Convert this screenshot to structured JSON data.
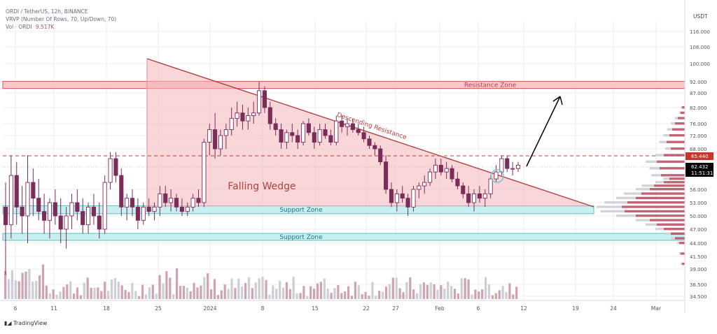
{
  "header": {
    "line1": "ORDI / TetherUS, 12h, BINANCE",
    "line2": "VRVP (Number Of Rows, 70, Up/Down, 70)",
    "line3_label": "Vol · ORDI",
    "line3_value": "9.517K"
  },
  "footer": {
    "brand": "TradingView"
  },
  "colors": {
    "up": "#7b2d5a",
    "down": "#7b2d5a",
    "wedge_fill": "#f4b4b8",
    "wedge_line": "#b0413e",
    "resistance_fill": "#f8c8cc",
    "resistance_line": "#d9534f",
    "support_fill": "#c8f0f0",
    "support_line": "#5bc0c0",
    "vol_up": "#c9c9d1",
    "vol_down": "#c89aa6",
    "vp": "#b8495e"
  },
  "chart_data": {
    "type": "candlestick",
    "symbol": "ORDI / TetherUS",
    "timeframe": "12h",
    "exchange": "BINANCE",
    "y_axis_unit": "USDT",
    "y_ticks": [
      "116.000",
      "108.000",
      "100.000",
      "92.000",
      "87.000",
      "82.000",
      "76.000",
      "72.000",
      "68.000",
      "62.432",
      "56.000",
      "53.000",
      "50.000",
      "47.000",
      "44.000",
      "41.500",
      "39.000",
      "36.500",
      "34.500"
    ],
    "x_ticks": [
      "6",
      "11",
      "18",
      "25",
      "2024",
      "8",
      "15",
      "22",
      "27",
      "Feb",
      "6",
      "12",
      "19",
      "24",
      "Mar"
    ],
    "last_price": "62.432",
    "last_price_time": "11:51:31",
    "high_price_label": "65.440",
    "price_range": [
      33.5,
      122
    ],
    "candles_ohlc": [
      [
        52,
        58,
        38,
        48
      ],
      [
        48,
        66,
        45,
        60
      ],
      [
        60,
        64,
        48,
        52
      ],
      [
        52,
        57,
        46,
        50
      ],
      [
        50,
        66,
        44,
        58
      ],
      [
        58,
        62,
        50,
        54
      ],
      [
        54,
        59,
        49,
        51
      ],
      [
        51,
        55,
        46,
        49
      ],
      [
        49,
        54,
        45,
        53
      ],
      [
        53,
        56,
        48,
        50
      ],
      [
        50,
        54,
        44,
        47
      ],
      [
        47,
        52,
        43,
        50
      ],
      [
        50,
        55,
        47,
        53
      ],
      [
        53,
        56,
        49,
        51
      ],
      [
        51,
        54,
        46,
        48
      ],
      [
        48,
        53,
        46,
        52
      ],
      [
        52,
        55,
        48,
        50
      ],
      [
        50,
        53,
        45,
        47
      ],
      [
        47,
        60,
        46,
        58
      ],
      [
        58,
        67,
        56,
        65
      ],
      [
        65,
        67,
        58,
        60
      ],
      [
        60,
        62,
        50,
        52
      ],
      [
        52,
        55,
        49,
        54
      ],
      [
        54,
        56,
        50,
        52
      ],
      [
        52,
        54,
        47,
        49
      ],
      [
        49,
        53,
        48,
        52
      ],
      [
        52,
        54,
        50,
        51
      ],
      [
        51,
        53,
        49,
        52
      ],
      [
        52,
        57,
        50,
        55
      ],
      [
        55,
        57,
        52,
        53
      ],
      [
        53,
        56,
        51,
        54
      ],
      [
        54,
        55,
        51,
        52
      ],
      [
        52,
        54,
        50,
        51
      ],
      [
        51,
        53,
        50,
        52
      ],
      [
        52,
        55,
        51,
        54
      ],
      [
        54,
        56,
        52,
        53
      ],
      [
        53,
        71,
        52,
        70
      ],
      [
        70,
        76,
        66,
        74
      ],
      [
        74,
        80,
        65,
        68
      ],
      [
        68,
        74,
        66,
        72
      ],
      [
        72,
        76,
        68,
        74
      ],
      [
        74,
        82,
        72,
        78
      ],
      [
        78,
        84,
        75,
        80
      ],
      [
        80,
        83,
        74,
        77
      ],
      [
        77,
        82,
        74,
        79
      ],
      [
        79,
        84,
        76,
        80
      ],
      [
        80,
        92,
        79,
        88
      ],
      [
        88,
        90,
        80,
        82
      ],
      [
        82,
        84,
        74,
        76
      ],
      [
        76,
        78,
        72,
        74
      ],
      [
        74,
        76,
        68,
        70
      ],
      [
        70,
        74,
        68,
        73
      ],
      [
        73,
        76,
        70,
        72
      ],
      [
        72,
        74,
        68,
        70
      ],
      [
        70,
        77,
        69,
        76
      ],
      [
        76,
        78,
        72,
        73
      ],
      [
        73,
        75,
        68,
        70
      ],
      [
        70,
        76,
        69,
        74
      ],
      [
        74,
        76,
        71,
        72
      ],
      [
        72,
        74,
        69,
        70
      ],
      [
        70,
        79,
        69,
        77
      ],
      [
        77,
        79,
        73,
        75
      ],
      [
        75,
        78,
        72,
        76
      ],
      [
        76,
        78,
        73,
        74
      ],
      [
        74,
        76,
        72,
        73
      ],
      [
        73,
        75,
        70,
        71
      ],
      [
        71,
        72,
        68,
        69
      ],
      [
        69,
        70,
        66,
        68
      ],
      [
        68,
        69,
        63,
        64
      ],
      [
        64,
        66,
        55,
        56
      ],
      [
        56,
        58,
        52,
        53
      ],
      [
        53,
        56,
        51,
        55
      ],
      [
        55,
        57,
        53,
        54
      ],
      [
        54,
        55,
        50,
        52
      ],
      [
        52,
        57,
        51,
        56
      ],
      [
        56,
        58,
        54,
        57
      ],
      [
        57,
        60,
        55,
        58
      ],
      [
        58,
        62,
        57,
        61
      ],
      [
        61,
        65,
        59,
        63
      ],
      [
        63,
        65,
        60,
        61
      ],
      [
        61,
        64,
        59,
        62
      ],
      [
        62,
        63,
        58,
        59
      ],
      [
        59,
        61,
        56,
        57
      ],
      [
        57,
        58,
        54,
        55
      ],
      [
        55,
        57,
        52,
        53
      ],
      [
        53,
        56,
        51,
        55
      ],
      [
        55,
        57,
        53,
        54
      ],
      [
        54,
        56,
        52,
        55
      ],
      [
        55,
        60,
        54,
        59
      ],
      [
        59,
        63,
        58,
        61
      ],
      [
        61,
        66,
        60,
        65
      ],
      [
        65,
        66,
        61,
        62
      ],
      [
        62,
        64,
        60,
        62
      ],
      [
        62,
        64,
        61,
        63
      ]
    ],
    "overlays": [
      {
        "kind": "triangle",
        "label": "Falling Wedge"
      },
      {
        "kind": "trendline",
        "label": "Descending Resistance"
      },
      {
        "kind": "zone",
        "label": "Resistance Zone",
        "range": [
          89,
          92
        ]
      },
      {
        "kind": "zone",
        "label": "Support Zone",
        "range": [
          50.5,
          52.2
        ]
      },
      {
        "kind": "zone",
        "label": "Support Zone",
        "range": [
          44.6,
          46.0
        ]
      }
    ]
  }
}
